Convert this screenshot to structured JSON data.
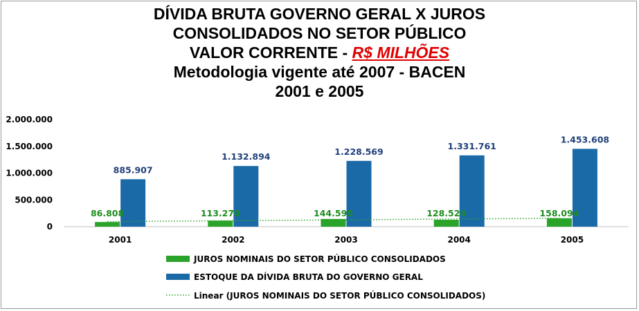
{
  "title": {
    "line1": "DÍVIDA BRUTA GOVERNO GERAL X JUROS",
    "line2": "CONSOLIDADOS NO SETOR PÚBLICO",
    "line3_prefix": "VALOR CORRENTE - ",
    "line3_highlight": "R$ MILHÕES",
    "line4": "Metodologia vigente até 2007 - BACEN",
    "line5": "2001 e 2005"
  },
  "chart_data": {
    "type": "bar",
    "categories": [
      "2001",
      "2002",
      "2003",
      "2004",
      "2005"
    ],
    "series": [
      {
        "name": "JUROS NOMINAIS DO SETOR PÚBLICO CONSOLIDADOS",
        "values": [
          86808,
          113270,
          144595,
          128524,
          158094
        ],
        "labels": [
          "86.808",
          "113.270",
          "144.595",
          "128.524",
          "158.094"
        ],
        "color": "#2aa32a",
        "label_color": "#1e8c1e"
      },
      {
        "name": "ESTOQUE DA DÍVIDA BRUTA DO GOVERNO GERAL",
        "values": [
          885907,
          1132894,
          1228569,
          1331761,
          1453608
        ],
        "labels": [
          "885.907",
          "1.132.894",
          "1.228.569",
          "1.331.761",
          "1.453.608"
        ],
        "color": "#1b6aa8",
        "label_color": "#1f3f7a"
      }
    ],
    "trendline": {
      "name": "Linear (JUROS NOMINAIS DO SETOR PÚBLICO CONSOLIDADOS)",
      "type": "linear",
      "color": "#2aa32a"
    },
    "y_ticks": [
      0,
      500000,
      1000000,
      1500000,
      2000000
    ],
    "y_tick_labels": [
      "0",
      "500.000",
      "1.000.000",
      "1.500.000",
      "2.000.000"
    ],
    "ylim": [
      0,
      2000000
    ],
    "grid": false,
    "legend_position": "bottom"
  }
}
